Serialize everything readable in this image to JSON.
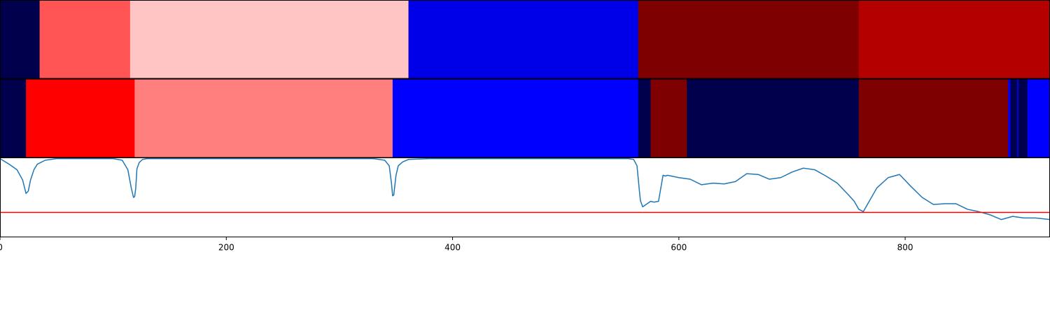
{
  "chart_data": [
    {
      "type": "heatmap",
      "title": "",
      "xlabel": "",
      "ylabel": "",
      "xlim": [
        0,
        928
      ],
      "segments": [
        {
          "start": 0,
          "end": 35,
          "color": "#00004c"
        },
        {
          "start": 35,
          "end": 115,
          "color": "#ff5555"
        },
        {
          "start": 115,
          "end": 361,
          "color": "#ffc4c4"
        },
        {
          "start": 361,
          "end": 564,
          "color": "#0000e8"
        },
        {
          "start": 564,
          "end": 759,
          "color": "#7f0000"
        },
        {
          "start": 759,
          "end": 928,
          "color": "#b50000"
        }
      ]
    },
    {
      "type": "heatmap",
      "title": "",
      "xlabel": "",
      "ylabel": "",
      "xlim": [
        0,
        928
      ],
      "segments": [
        {
          "start": 0,
          "end": 23,
          "color": "#00004c"
        },
        {
          "start": 23,
          "end": 119,
          "color": "#ff0000"
        },
        {
          "start": 119,
          "end": 347,
          "color": "#ff7f7f"
        },
        {
          "start": 347,
          "end": 564,
          "color": "#0000ff"
        },
        {
          "start": 564,
          "end": 575,
          "color": "#00004c"
        },
        {
          "start": 575,
          "end": 607,
          "color": "#7f0000"
        },
        {
          "start": 607,
          "end": 759,
          "color": "#00004c"
        },
        {
          "start": 759,
          "end": 891,
          "color": "#7f0000"
        },
        {
          "start": 891,
          "end": 893,
          "color": "#0000ff"
        },
        {
          "start": 893,
          "end": 899,
          "color": "#00004c"
        },
        {
          "start": 899,
          "end": 900,
          "color": "#0000ff"
        },
        {
          "start": 900,
          "end": 908,
          "color": "#00004c"
        },
        {
          "start": 908,
          "end": 928,
          "color": "#0000ff"
        }
      ]
    },
    {
      "type": "line",
      "title": "",
      "xlabel": "",
      "ylabel": "",
      "xlim": [
        0,
        928
      ],
      "ylim": [
        0,
        1
      ],
      "x_ticks": [
        0,
        200,
        400,
        600,
        800
      ],
      "x_tick_labels": [
        "0",
        "200",
        "400",
        "600",
        "800"
      ],
      "threshold": {
        "value": 0.31,
        "color": "#ff0000"
      },
      "series": [
        {
          "color": "#1f77b4",
          "x": [
            0,
            8,
            15,
            20,
            23,
            25,
            27,
            30,
            33,
            40,
            50,
            60,
            70,
            80,
            90,
            100,
            108,
            113,
            116,
            118,
            119,
            120,
            121,
            123,
            126,
            130,
            140,
            160,
            200,
            250,
            300,
            330,
            340,
            344,
            346,
            347,
            348,
            350,
            352,
            356,
            361,
            380,
            420,
            480,
            540,
            555,
            560,
            563,
            565,
            566,
            568,
            570,
            575,
            578,
            582,
            586,
            588,
            590,
            600,
            610,
            620,
            630,
            640,
            650,
            660,
            670,
            680,
            690,
            700,
            710,
            720,
            730,
            740,
            750,
            755,
            759,
            763,
            767,
            775,
            785,
            795,
            805,
            815,
            825,
            835,
            845,
            855,
            865,
            875,
            885,
            895,
            905,
            915,
            928
          ],
          "y": [
            0.99,
            0.92,
            0.85,
            0.72,
            0.55,
            0.58,
            0.72,
            0.85,
            0.92,
            0.97,
            0.99,
            0.99,
            0.99,
            0.99,
            0.99,
            0.99,
            0.97,
            0.85,
            0.62,
            0.5,
            0.51,
            0.62,
            0.86,
            0.94,
            0.98,
            0.99,
            0.99,
            0.99,
            0.99,
            0.99,
            0.99,
            0.99,
            0.97,
            0.9,
            0.68,
            0.52,
            0.53,
            0.78,
            0.9,
            0.95,
            0.98,
            0.99,
            0.99,
            0.99,
            0.99,
            0.99,
            0.98,
            0.9,
            0.6,
            0.46,
            0.38,
            0.4,
            0.45,
            0.44,
            0.45,
            0.78,
            0.77,
            0.78,
            0.75,
            0.73,
            0.66,
            0.68,
            0.67,
            0.7,
            0.8,
            0.79,
            0.73,
            0.75,
            0.82,
            0.87,
            0.85,
            0.77,
            0.68,
            0.53,
            0.45,
            0.35,
            0.32,
            0.42,
            0.62,
            0.75,
            0.79,
            0.64,
            0.5,
            0.41,
            0.42,
            0.42,
            0.35,
            0.32,
            0.28,
            0.22,
            0.26,
            0.24,
            0.24,
            0.22
          ]
        }
      ]
    }
  ]
}
